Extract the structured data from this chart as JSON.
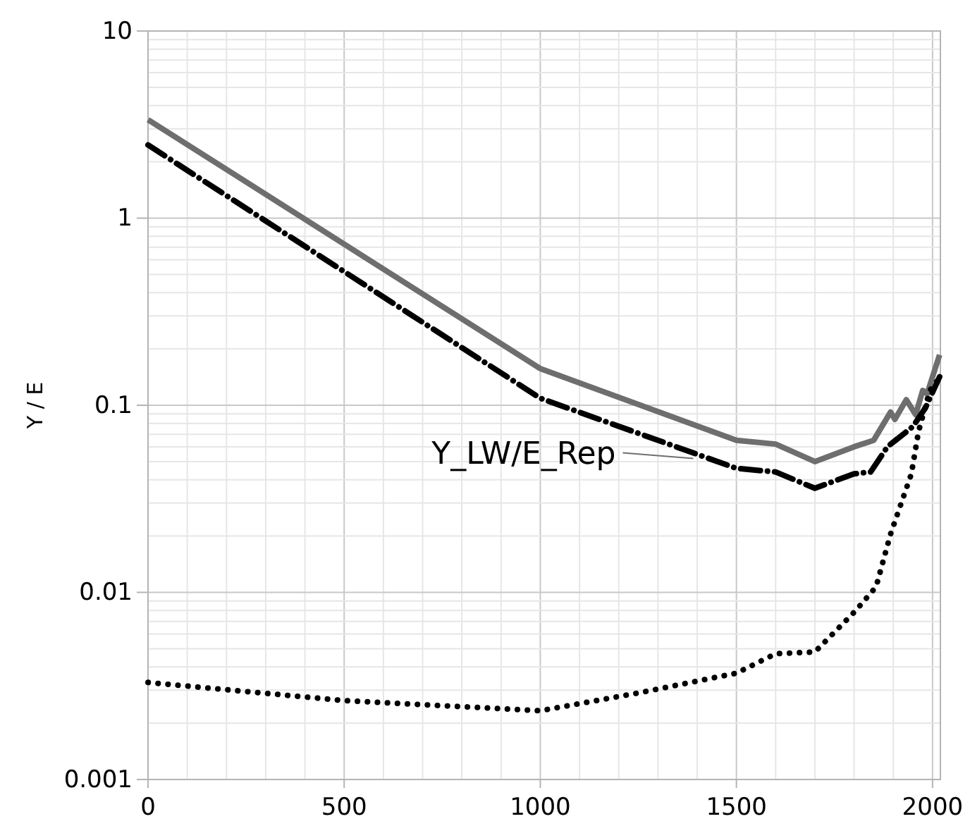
{
  "chart_data": {
    "type": "line",
    "ylabel": "Y / E",
    "log": "y",
    "grid": true,
    "xlim": [
      0,
      2020
    ],
    "xticks": [
      0,
      500,
      1000,
      1500,
      2000
    ],
    "ylim": [
      0.001,
      10
    ],
    "yticks": [
      0.001,
      0.01,
      0.1,
      1,
      10
    ],
    "annotations": [
      {
        "text": "Y_LW/E_Rep",
        "x": 1390,
        "y": 0.052
      }
    ],
    "series": [
      {
        "color": "#6e6e6e",
        "line_style": "solid",
        "x": [
          0,
          1000,
          1500,
          1600,
          1700,
          1800,
          1850,
          1893,
          1904,
          1933,
          1957,
          1975,
          1986,
          2018
        ],
        "values": [
          3.36,
          0.157,
          0.065,
          0.062,
          0.05,
          0.06,
          0.065,
          0.092,
          0.084,
          0.107,
          0.089,
          0.12,
          0.115,
          0.186
        ]
      },
      {
        "color": "#000000",
        "line_style": "dashdot",
        "x": [
          0,
          1000,
          1500,
          1600,
          1700,
          1800,
          1842,
          1885,
          1950,
          1982,
          2018
        ],
        "values": [
          2.46,
          0.109,
          0.046,
          0.044,
          0.036,
          0.043,
          0.044,
          0.06,
          0.077,
          0.097,
          0.142
        ]
      },
      {
        "color": "#000000",
        "line_style": "dotted",
        "x": [
          0,
          500,
          1000,
          1250,
          1500,
          1600,
          1700,
          1802,
          1856,
          1893,
          1946,
          1964,
          1993,
          2018
        ],
        "values": [
          0.0033,
          0.00264,
          0.00233,
          0.0029,
          0.0037,
          0.0047,
          0.0048,
          0.0079,
          0.0107,
          0.0205,
          0.043,
          0.072,
          0.12,
          0.14
        ]
      }
    ]
  }
}
